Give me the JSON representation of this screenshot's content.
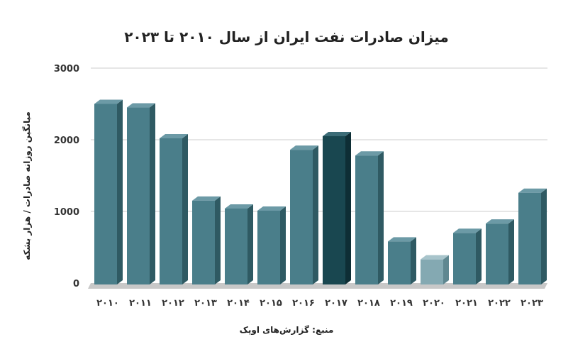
{
  "chart_data": {
    "type": "bar",
    "title": "میزان صادرات نفت ایران از سال ۲۰۱۰ تا ۲۰۲۳",
    "ylabel": "میانگین روزانه صادرات / هزار بشکه",
    "xlabel": "منبع: گزارش‌های اوپک",
    "categories": [
      "۲۰۱۰",
      "۲۰۱۱",
      "۲۰۱۲",
      "۲۰۱۳",
      "۲۰۱۴",
      "۲۰۱۵",
      "۲۰۱۶",
      "۲۰۱۷",
      "۲۰۱۸",
      "۲۰۱۹",
      "۲۰۲۰",
      "۲۰۲۱",
      "۲۰۲۲",
      "۲۰۲۳"
    ],
    "values": [
      2500,
      2450,
      2020,
      1150,
      1040,
      1010,
      1860,
      2050,
      1780,
      580,
      330,
      700,
      830,
      1260
    ],
    "ylim": [
      0,
      3000
    ],
    "yticks": [
      0,
      1000,
      2000,
      3000
    ],
    "ytick_labels": [
      "0",
      "1000",
      "2000",
      "3000"
    ],
    "grid": true,
    "legend": "none",
    "colors": {
      "default_front": "#4a7e8a",
      "default_side": "#2f5a63",
      "default_top": "#6c9aa6",
      "highlight_front": "#194750",
      "highlight_side": "#0e2e35",
      "highlight_top": "#3c6c77",
      "light_front": "#84a9b2",
      "light_side": "#5f8790",
      "light_top": "#a8c4cb",
      "grid": "#cccccc",
      "floor": "#c8c8c8"
    },
    "bar_styles": [
      "default",
      "default",
      "default",
      "default",
      "default",
      "default",
      "default",
      "highlight",
      "default",
      "default",
      "light",
      "default",
      "default",
      "default"
    ]
  }
}
